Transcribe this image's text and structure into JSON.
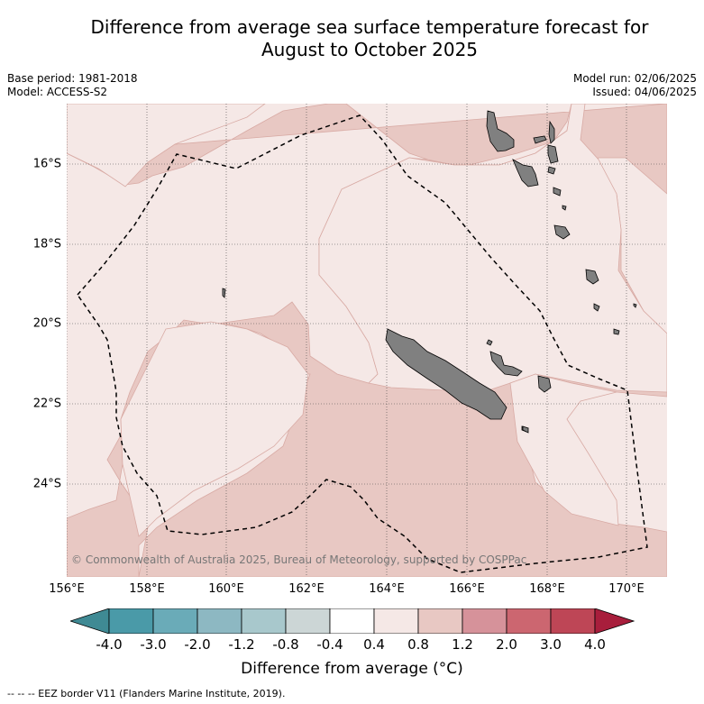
{
  "title_line1": "Difference from average sea surface temperature forecast for",
  "title_line2": "August to October 2025",
  "base_period": "Base period: 1981-2018",
  "model": "Model: ACCESS-S2",
  "model_run": "Model run: 02/06/2025",
  "issued": "Issued: 04/06/2025",
  "copyright": "© Commonwealth of Australia 2025, Bureau of Meteorology, supported by COSPPac",
  "lat_labels": [
    "16°S",
    "18°S",
    "20°S",
    "22°S",
    "24°S"
  ],
  "lon_labels": [
    "156°E",
    "158°E",
    "160°E",
    "162°E",
    "164°E",
    "166°E",
    "168°E",
    "170°E"
  ],
  "colorbar": {
    "ticks": [
      "-4.0",
      "-3.0",
      "-2.0",
      "-1.2",
      "-0.8",
      "-0.4",
      "0.4",
      "0.8",
      "1.2",
      "2.0",
      "3.0",
      "4.0"
    ],
    "colors": [
      "#4a9aa8",
      "#6aabb8",
      "#8db8c2",
      "#a8c8cc",
      "#ccd6d6",
      "#ffffff",
      "#f5e8e6",
      "#e8c8c3",
      "#d6929a",
      "#cc6670",
      "#be4656"
    ],
    "extend_low_color": "#3f8a94",
    "extend_high_color": "#a81e3c",
    "label": "Difference from average (°C)"
  },
  "legend_note": "-- -- -- EEZ border V11 (Flanders Marine Institute, 2019).",
  "map_colors": {
    "anom_0.4_0.8": "#f5e8e6",
    "anom_0.8_1.2": "#e8c8c3",
    "land": "#808080",
    "grid": "#444444"
  }
}
